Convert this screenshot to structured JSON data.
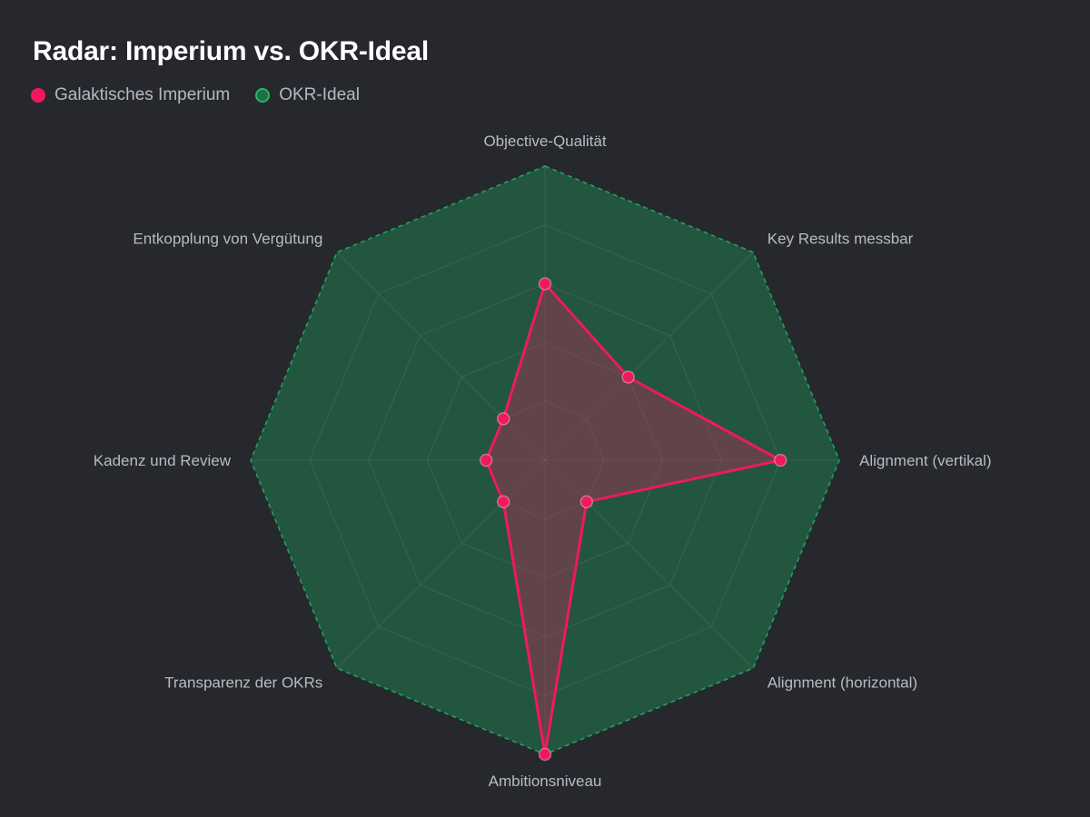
{
  "chart_data": {
    "type": "radar",
    "title": "Radar: Imperium vs. OKR-Ideal",
    "axes": [
      "Objective-Qualität",
      "Key Results messbar",
      "Alignment (vertikal)",
      "Alignment (horizontal)",
      "Ambitionsniveau",
      "Transparenz der OKRs",
      "Kadenz und Review",
      "Entkopplung von Vergütung"
    ],
    "rlim": [
      0,
      10
    ],
    "grid_levels": 5,
    "series": [
      {
        "name": "Galaktisches Imperium",
        "values": [
          6,
          4,
          8,
          2,
          10,
          2,
          2,
          2
        ],
        "color": "#f0195e",
        "fill": "rgba(240,25,94,0.3)"
      },
      {
        "name": "OKR-Ideal",
        "values": [
          10,
          10,
          10,
          10,
          10,
          10,
          10,
          10
        ],
        "color": "#1fa35a",
        "fill": "rgba(31,163,90,0.38)"
      }
    ],
    "legend_position": "top-left"
  }
}
